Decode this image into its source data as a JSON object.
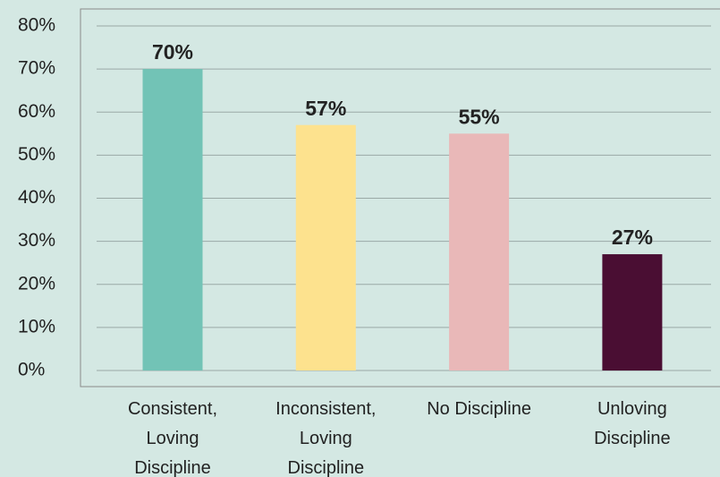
{
  "chart_data": {
    "type": "bar",
    "categories": [
      "Consistent, Loving Discipline",
      "Inconsistent, Loving Discipline",
      "No Discipline",
      "Unloving Discipline"
    ],
    "values": [
      70,
      57,
      55,
      27
    ],
    "value_labels": [
      "70%",
      "57%",
      "55%",
      "27%"
    ],
    "colors": [
      "#72c3b6",
      "#fde28e",
      "#e9b8b8",
      "#4a0e33"
    ],
    "ylim": [
      0,
      80
    ],
    "yticks": [
      {
        "value": 0,
        "label": "0%"
      },
      {
        "value": 10,
        "label": "10%"
      },
      {
        "value": 20,
        "label": "20%"
      },
      {
        "value": 30,
        "label": "30%"
      },
      {
        "value": 40,
        "label": "40%"
      },
      {
        "value": 50,
        "label": "50%"
      },
      {
        "value": 60,
        "label": "60%"
      },
      {
        "value": 70,
        "label": "70%"
      },
      {
        "value": 80,
        "label": "80%"
      }
    ],
    "grid": true
  }
}
